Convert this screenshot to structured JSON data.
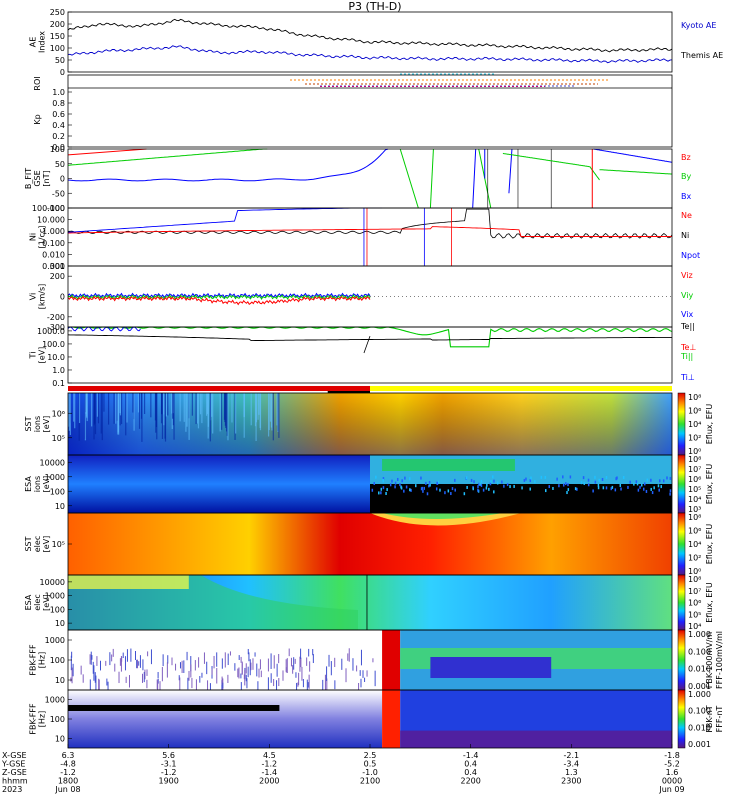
{
  "title": "P3 (TH-D)",
  "colors": {
    "kyoto": "#0000cc",
    "themis": "#000000",
    "bz": "#ff0000",
    "by": "#00cc00",
    "bx": "#0000ff",
    "ne": "#ff0000",
    "ni": "#000000",
    "npot": "#0000ff",
    "vz": "#ff0000",
    "vy": "#00cc00",
    "vx": "#0000ff"
  },
  "chart_data": [
    {
      "type": "line",
      "ylabel": "AE Index",
      "ylim": [
        0,
        250
      ],
      "yticks": [
        "250",
        "200",
        "150",
        "100",
        "50",
        "0"
      ],
      "yticks_vals": [
        250,
        200,
        150,
        100,
        50,
        0
      ],
      "series": [
        {
          "name": "Kyoto AE",
          "x": [
            0,
            0.05,
            0.12,
            0.18,
            0.25,
            0.32,
            0.4,
            0.5,
            0.6,
            0.7,
            0.8,
            0.9,
            1.0
          ],
          "values": [
            175,
            200,
            190,
            215,
            195,
            185,
            150,
            125,
            118,
            110,
            100,
            90,
            95
          ]
        },
        {
          "name": "Themis AE",
          "x": [
            0,
            0.05,
            0.12,
            0.18,
            0.25,
            0.32,
            0.4,
            0.5,
            0.6,
            0.7,
            0.8,
            0.9,
            1.0
          ],
          "values": [
            70,
            85,
            95,
            105,
            80,
            85,
            70,
            60,
            55,
            55,
            50,
            45,
            50
          ]
        }
      ]
    },
    {
      "type": "bar",
      "ylabel": "ROI"
    },
    {
      "type": "line",
      "ylabel": "Kp",
      "ylim": [
        0,
        1.0
      ],
      "yticks": [
        "1.0",
        "0.8",
        "0.6",
        "0.4",
        "0.2",
        "0.0"
      ],
      "yticks_vals": [
        1.0,
        0.8,
        0.6,
        0.4,
        0.2,
        0.0
      ]
    },
    {
      "type": "line",
      "ylabel": "B_FIT GSE [nT]",
      "ylim": [
        -100,
        100
      ],
      "yticks": [
        "100",
        "50",
        "0",
        "-50",
        "-100"
      ],
      "yticks_vals": [
        100,
        50,
        0,
        -50,
        -100
      ],
      "series": [
        {
          "name": "Bz"
        },
        {
          "name": "By"
        },
        {
          "name": "Bx"
        }
      ]
    },
    {
      "type": "line",
      "ylabel": "Ni [1/cc]",
      "scale": "log",
      "yticks": [
        "100.000",
        "10.000",
        "1.000",
        "0.100",
        "0.010",
        "0.001"
      ],
      "yticks_vals": [
        100,
        10,
        1,
        0.1,
        0.01,
        0.001
      ],
      "series": [
        {
          "name": "Ne"
        },
        {
          "name": "Ni"
        },
        {
          "name": "Npot"
        }
      ]
    },
    {
      "type": "line",
      "ylabel": "Vi [km/s]",
      "ylim": [
        -300,
        300
      ],
      "yticks": [
        "300",
        "200",
        "0",
        "-200",
        "-300"
      ],
      "yticks_vals": [
        300,
        200,
        0,
        -200,
        -300
      ],
      "series": [
        {
          "name": "Viz"
        },
        {
          "name": "Viy"
        },
        {
          "name": "Vix"
        }
      ]
    },
    {
      "type": "line",
      "ylabel": "Ti [eV]",
      "scale": "log",
      "yticks": [
        "1000.0",
        "100.0",
        "10.0",
        "1.0",
        "0.1"
      ],
      "yticks_vals": [
        1000,
        100,
        10,
        1,
        0.1
      ],
      "series": [
        {
          "name": "Te||"
        },
        {
          "name": "Te⊥"
        },
        {
          "name": "Ti||"
        },
        {
          "name": "Ti⊥"
        }
      ]
    },
    {
      "type": "heatmap",
      "ylabel": "SST ions [eV]",
      "yticks": [
        "10⁶",
        "10⁵"
      ],
      "zlabel": "Eflux, EFU",
      "zticks": [
        "10⁸",
        "10⁶",
        "10⁴",
        "10²",
        "10⁰"
      ]
    },
    {
      "type": "heatmap",
      "ylabel": "ESA ions [eV]",
      "yticks": [
        "10000",
        "1000",
        "100",
        "10"
      ],
      "zlabel": "Eflux, EFU",
      "zticks": [
        "10⁸",
        "10⁷",
        "10⁶",
        "10⁵",
        "10⁴",
        "10³"
      ]
    },
    {
      "type": "heatmap",
      "ylabel": "SST elec [eV]",
      "yticks": [
        "10⁵"
      ],
      "zlabel": "Eflux, EFU",
      "zticks": [
        "10⁸",
        "10⁶",
        "10⁴",
        "10²",
        "10⁰"
      ]
    },
    {
      "type": "heatmap",
      "ylabel": "ESA elec [eV]",
      "yticks": [
        "10000",
        "1000",
        "100",
        "10"
      ],
      "zlabel": "Eflux, EFU",
      "zticks": [
        "10⁸",
        "10⁷",
        "10⁶",
        "10⁵",
        "10⁴"
      ]
    },
    {
      "type": "heatmap",
      "ylabel": "FBK-FFF [Hz]",
      "yticks": [
        "1000",
        "100",
        "10"
      ],
      "zlabel": "FBK-100mV/m",
      "zlabel2": "FFF-100mV/ml",
      "zticks": [
        "1.000",
        "0.100",
        "0.010",
        "0.001"
      ]
    },
    {
      "type": "heatmap",
      "ylabel": "FBK-FFF [Hz]",
      "yticks": [
        "1000",
        "100",
        "10"
      ],
      "zlabel": "FBK-nT",
      "zlabel2": "FFF-nT",
      "zticks": [
        "1.000",
        "0.100",
        "0.010",
        "0.001"
      ]
    }
  ],
  "time_axis": {
    "row_labels": [
      "X-GSE",
      "Y-GSE",
      "Z-GSE",
      "hhmm",
      "2023"
    ],
    "columns": [
      {
        "x": "6.3",
        "y": "-4.8",
        "z": "-1.2",
        "t": "1800",
        "d": "Jun 08"
      },
      {
        "x": "5.6",
        "y": "-3.1",
        "z": "-1.2",
        "t": "1900",
        "d": ""
      },
      {
        "x": "4.5",
        "y": "-1.2",
        "z": "-1.4",
        "t": "2000",
        "d": ""
      },
      {
        "x": "2.5",
        "y": "0.5",
        "z": "-1.0",
        "t": "2100",
        "d": ""
      },
      {
        "x": "-1.4",
        "y": "0.4",
        "z": "0.4",
        "t": "2200",
        "d": ""
      },
      {
        "x": "-2.1",
        "y": "-3.4",
        "z": "1.3",
        "t": "2300",
        "d": ""
      },
      {
        "x": "-1.8",
        "y": "-5.2",
        "z": "1.6",
        "t": "0000",
        "d": "Jun 09"
      }
    ]
  }
}
